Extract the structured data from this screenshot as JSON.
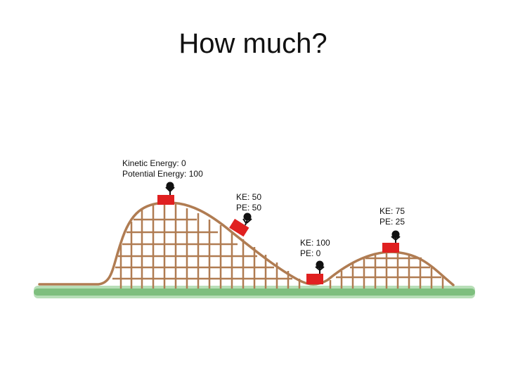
{
  "slide": {
    "title": "How much?"
  },
  "labels": {
    "top_hill": {
      "line1": "Kinetic Energy: 0",
      "line2": "Potential Energy: 100"
    },
    "mid_slope": {
      "line1": "KE: 50",
      "line2": "PE: 50"
    },
    "valley": {
      "line1": "KE: 100",
      "line2": "PE: 0"
    },
    "second_hill": {
      "line1": "KE: 75",
      "line2": "PE: 25"
    }
  },
  "colors": {
    "track": "#b07c52",
    "cart": "#e02020",
    "grass": "#3a9a3a",
    "rider": "#111111"
  }
}
